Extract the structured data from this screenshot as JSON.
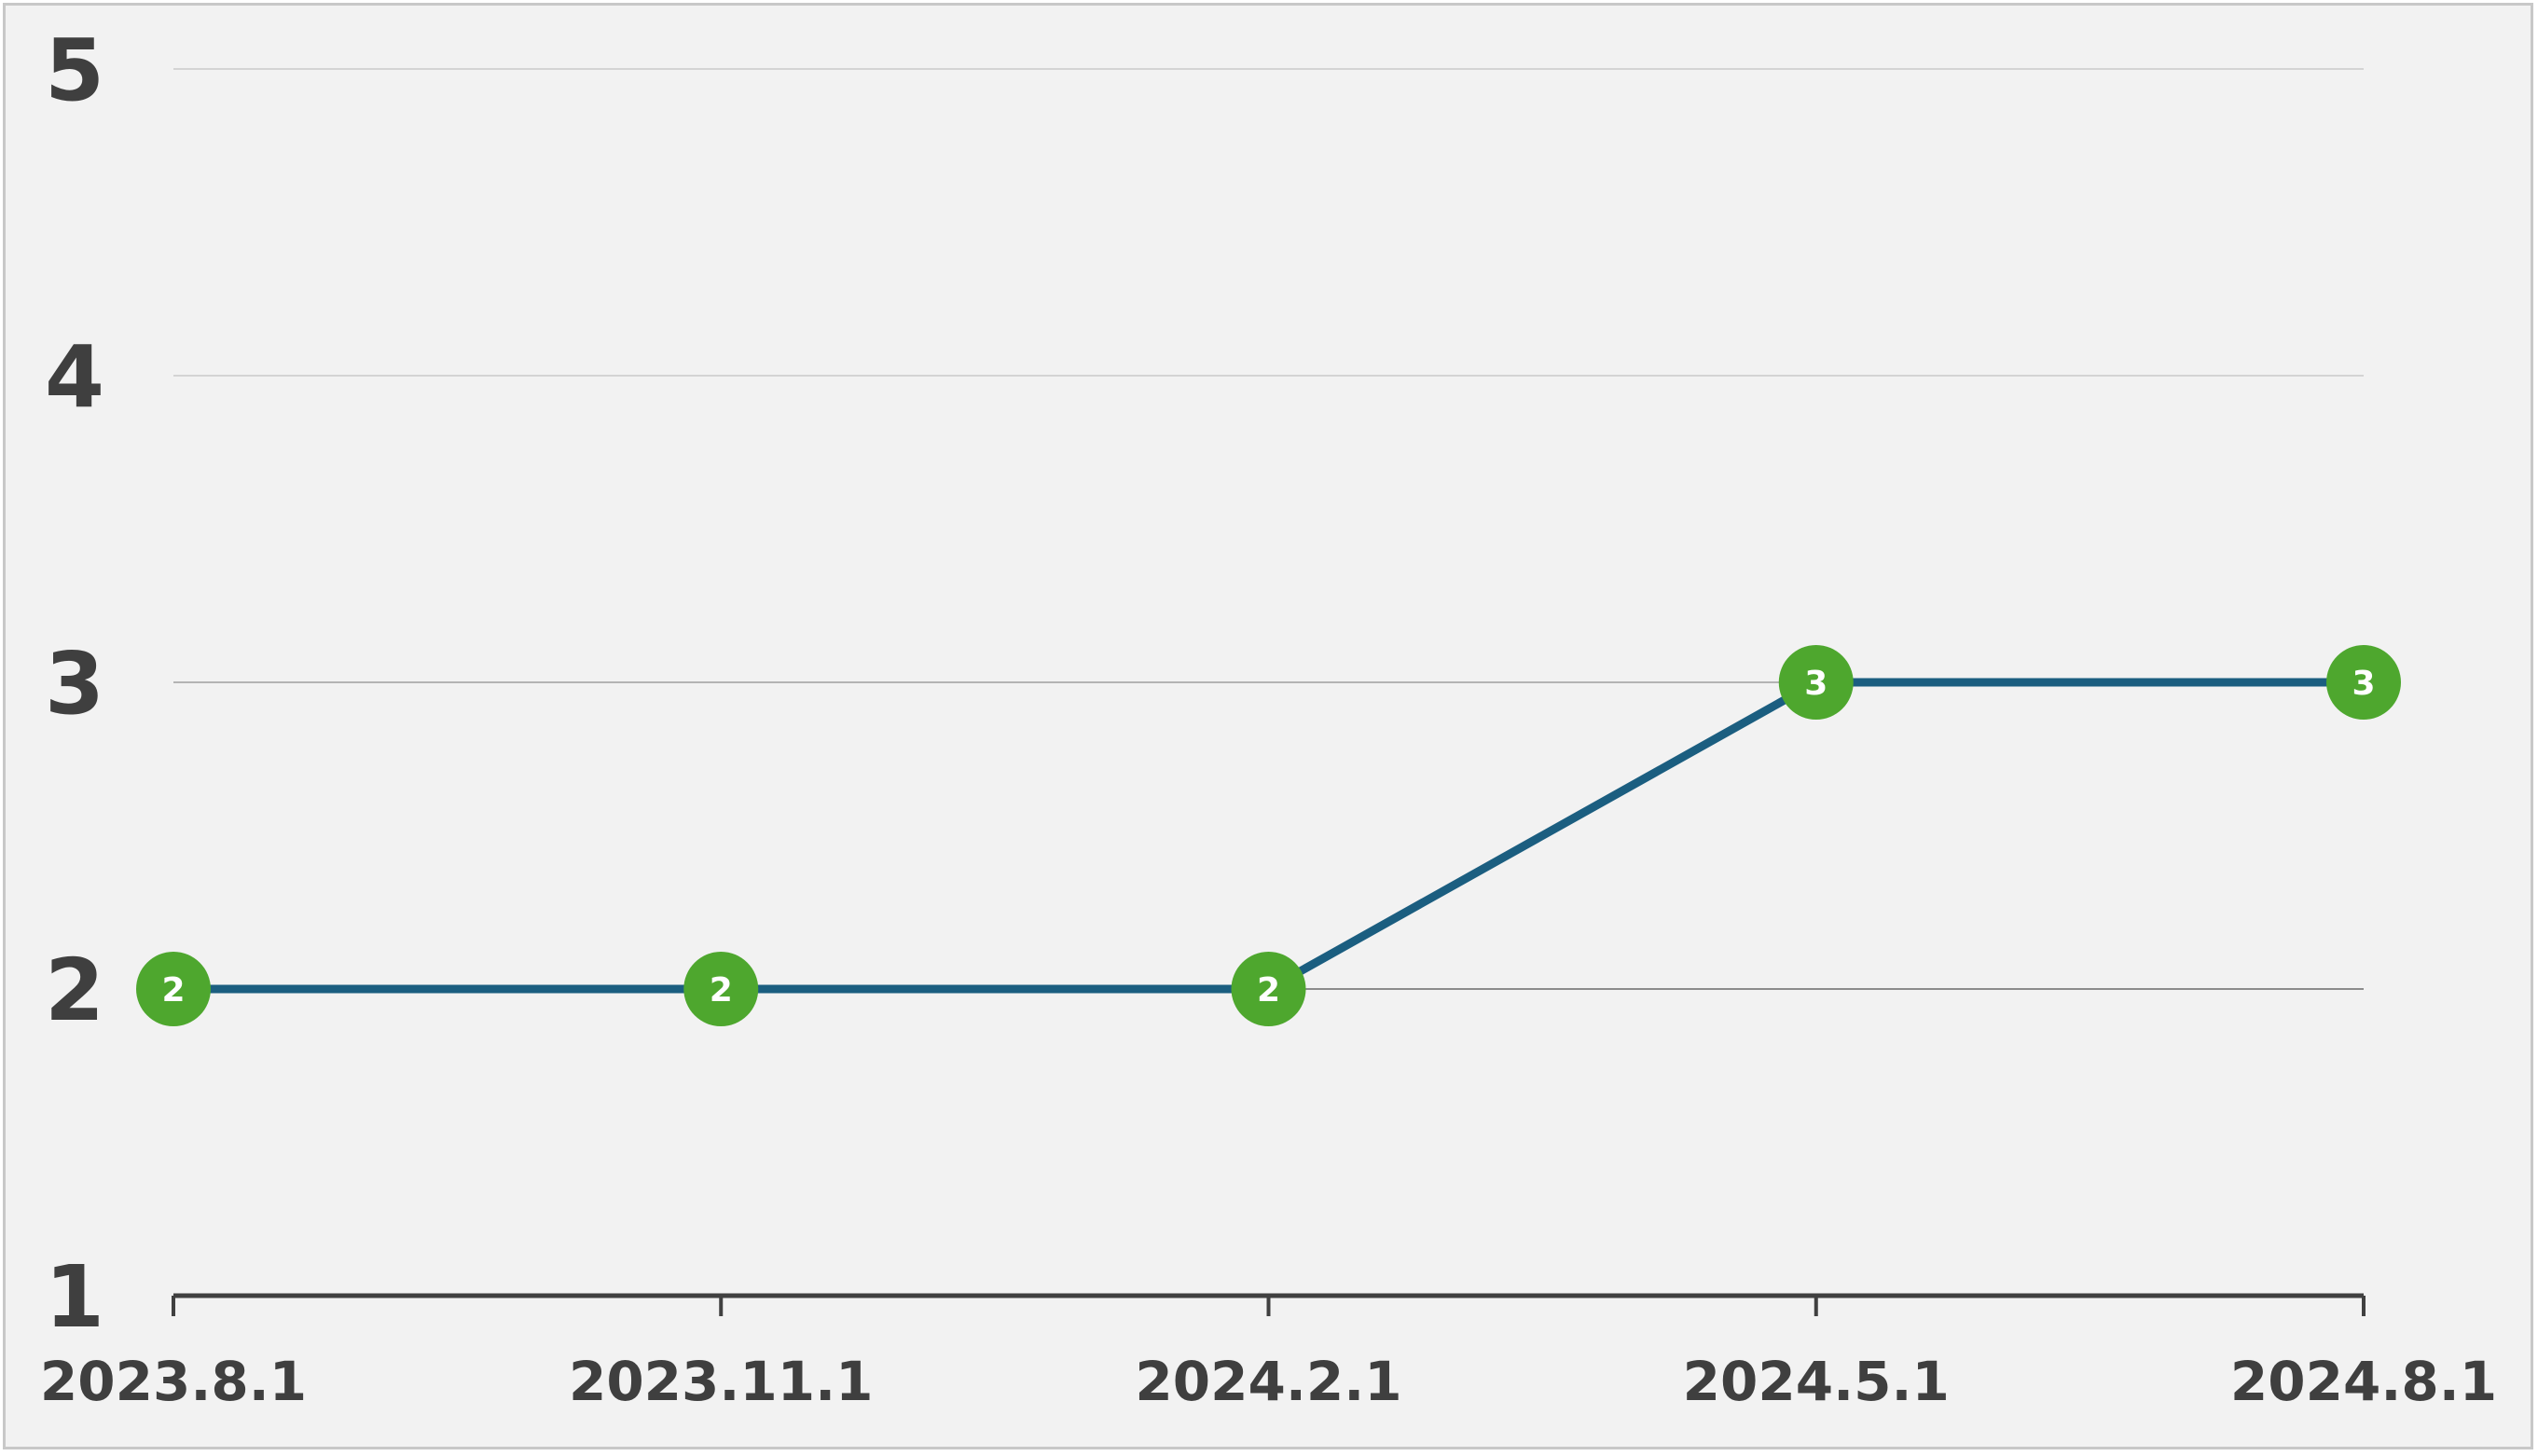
{
  "chart_data": {
    "type": "line",
    "title": "",
    "xlabel": "",
    "ylabel": "",
    "categories": [
      "2023.8.1",
      "2023.11.1",
      "2024.2.1",
      "2024.5.1",
      "2024.8.1"
    ],
    "series": [
      {
        "values": [
          2,
          2,
          2,
          3,
          3
        ]
      }
    ],
    "ylim": [
      1,
      5
    ],
    "yticks": [
      "1",
      "2",
      "3",
      "4",
      "5"
    ],
    "grid": true,
    "legend": "none",
    "data_labels": true
  },
  "colors": {
    "line": "#1b5e80",
    "marker": "#4ea72e",
    "marker_text": "#ffffff",
    "axis": "#404040",
    "text": "#3f3f3f",
    "gridline": "#d4d4d4",
    "background": "#f2f2f2"
  }
}
